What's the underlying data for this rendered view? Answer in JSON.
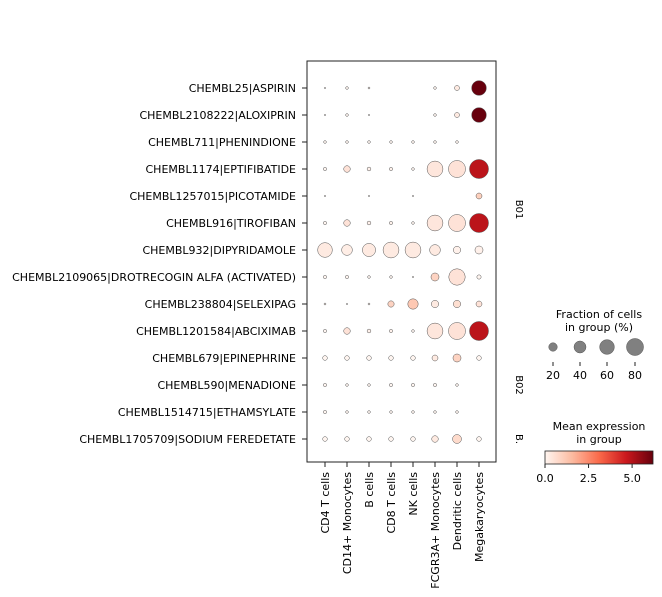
{
  "chart_data": {
    "type": "dotplot",
    "rows": [
      "CHEMBL25|ASPIRIN",
      "CHEMBL2108222|ALOXIPRIN",
      "CHEMBL711|PHENINDIONE",
      "CHEMBL1174|EPTIFIBATIDE",
      "CHEMBL1257015|PICOTAMIDE",
      "CHEMBL916|TIROFIBAN",
      "CHEMBL932|DIPYRIDAMOLE",
      "CHEMBL2109065|DROTRECOGIN ALFA (ACTIVATED)",
      "CHEMBL238804|SELEXIPAG",
      "CHEMBL1201584|ABCIXIMAB",
      "CHEMBL679|EPINEPHRINE",
      "CHEMBL590|MENADIONE",
      "CHEMBL1514715|ETHAMSYLATE",
      "CHEMBL1705709|SODIUM FEREDETATE"
    ],
    "columns": [
      "CD4 T cells",
      "CD14+ Monocytes",
      "B cells",
      "CD8 T cells",
      "NK cells",
      "FCGR3A+ Monocytes",
      "Dendritic cells",
      "Megakaryocytes"
    ],
    "fraction_pct": [
      [
        0.5,
        2,
        1,
        0,
        0,
        2,
        7,
        60
      ],
      [
        0.5,
        2,
        0.5,
        0,
        0,
        2,
        7,
        60
      ],
      [
        2,
        2,
        2,
        2,
        2,
        2,
        2,
        0
      ],
      [
        3,
        12,
        4,
        3,
        2,
        70,
        80,
        100
      ],
      [
        0.5,
        0,
        0.5,
        0,
        0.5,
        0,
        0,
        10
      ],
      [
        3,
        12,
        4,
        3,
        2,
        70,
        80,
        100
      ],
      [
        60,
        32,
        48,
        70,
        70,
        32,
        15,
        18
      ],
      [
        3,
        3,
        2,
        2,
        0.5,
        18,
        75,
        5
      ],
      [
        1,
        0.5,
        1,
        11,
        30,
        15,
        15,
        10
      ],
      [
        3,
        12,
        4,
        3,
        2,
        70,
        80,
        100
      ],
      [
        6,
        6,
        6,
        6,
        6,
        10,
        18,
        6
      ],
      [
        3,
        2,
        2,
        3,
        3,
        3,
        2,
        0
      ],
      [
        3,
        2,
        2,
        2,
        2,
        2,
        2,
        0
      ],
      [
        6,
        6,
        6,
        6,
        6,
        12,
        22,
        6
      ]
    ],
    "mean_expression": [
      [
        0,
        0,
        0,
        0,
        0,
        0,
        0.3,
        6.2
      ],
      [
        0,
        0,
        0,
        0,
        0,
        0,
        0.3,
        6.2
      ],
      [
        0,
        0,
        0,
        0,
        0,
        0,
        0,
        0
      ],
      [
        0,
        0.5,
        0.1,
        0.1,
        0,
        0.4,
        0.5,
        4.9
      ],
      [
        0,
        0,
        0,
        0,
        0,
        0,
        0,
        1.0
      ],
      [
        0,
        0.5,
        0.1,
        0.1,
        0,
        0.4,
        0.5,
        4.9
      ],
      [
        0.3,
        0.2,
        0.3,
        0.3,
        0.3,
        0.3,
        0.1,
        0.1
      ],
      [
        0,
        0,
        0,
        0,
        0,
        0.9,
        0.5,
        0
      ],
      [
        0,
        0,
        0,
        0.9,
        1.2,
        0.3,
        0.6,
        0.5
      ],
      [
        0,
        0.5,
        0.1,
        0.1,
        0,
        0.4,
        0.5,
        4.9
      ],
      [
        0,
        0,
        0,
        0,
        0,
        0.3,
        0.9,
        0
      ],
      [
        0,
        0,
        0,
        0,
        0,
        0,
        0,
        0
      ],
      [
        0,
        0,
        0,
        0,
        0,
        0,
        0,
        0
      ],
      [
        0,
        0,
        0,
        0,
        0,
        0.3,
        0.7,
        0
      ]
    ],
    "groups": [
      {
        "label": "B01",
        "start": 0,
        "end": 9
      },
      {
        "label": "B02",
        "start": 10,
        "end": 12
      },
      {
        "label": "B.",
        "start": 13,
        "end": 13
      }
    ],
    "size_legend": {
      "title_line1": "Fraction of cells",
      "title_line2": "in group (%)",
      "values": [
        20,
        40,
        60,
        80
      ],
      "labels": [
        "20",
        "40",
        "60",
        "80"
      ]
    },
    "color_legend": {
      "title_line1": "Mean expression",
      "title_line2": "in group",
      "vmin": 0,
      "vmax": 6.2,
      "ticks": [
        0,
        2.5,
        5
      ],
      "tick_labels": [
        "0.0",
        "2.5",
        "5.0"
      ]
    },
    "colors": {
      "low": "#fff5f0",
      "mid": "#ef3b2c",
      "high": "#67000d"
    }
  }
}
